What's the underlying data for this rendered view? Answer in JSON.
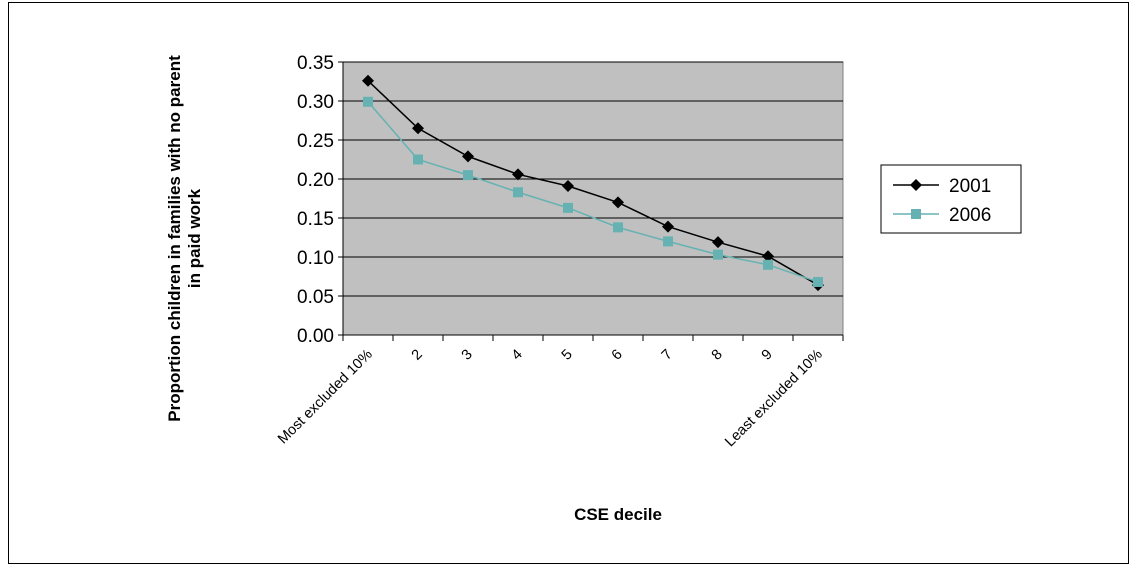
{
  "chart_data": {
    "type": "line",
    "title": "",
    "xlabel": "CSE decile",
    "ylabel_lines": [
      "Proportion children in families with no parent",
      "in paid work"
    ],
    "categories": [
      "Most excluded 10%",
      "2",
      "3",
      "4",
      "5",
      "6",
      "7",
      "8",
      "9",
      "Least excluded 10%"
    ],
    "ylim": [
      0,
      0.35
    ],
    "yticks": [
      "0.00",
      "0.05",
      "0.10",
      "0.15",
      "0.20",
      "0.25",
      "0.30",
      "0.35"
    ],
    "grid": "horizontal",
    "legend": "right",
    "series": [
      {
        "name": "2001",
        "color": "#000000",
        "marker": "diamond",
        "values": [
          0.326,
          0.265,
          0.229,
          0.206,
          0.191,
          0.17,
          0.139,
          0.119,
          0.101,
          0.064
        ]
      },
      {
        "name": "2006",
        "color": "#66b2b2",
        "marker": "square",
        "values": [
          0.299,
          0.225,
          0.205,
          0.183,
          0.163,
          0.138,
          0.12,
          0.103,
          0.09,
          0.068
        ]
      }
    ],
    "plot_background": "#c0c0c0"
  }
}
